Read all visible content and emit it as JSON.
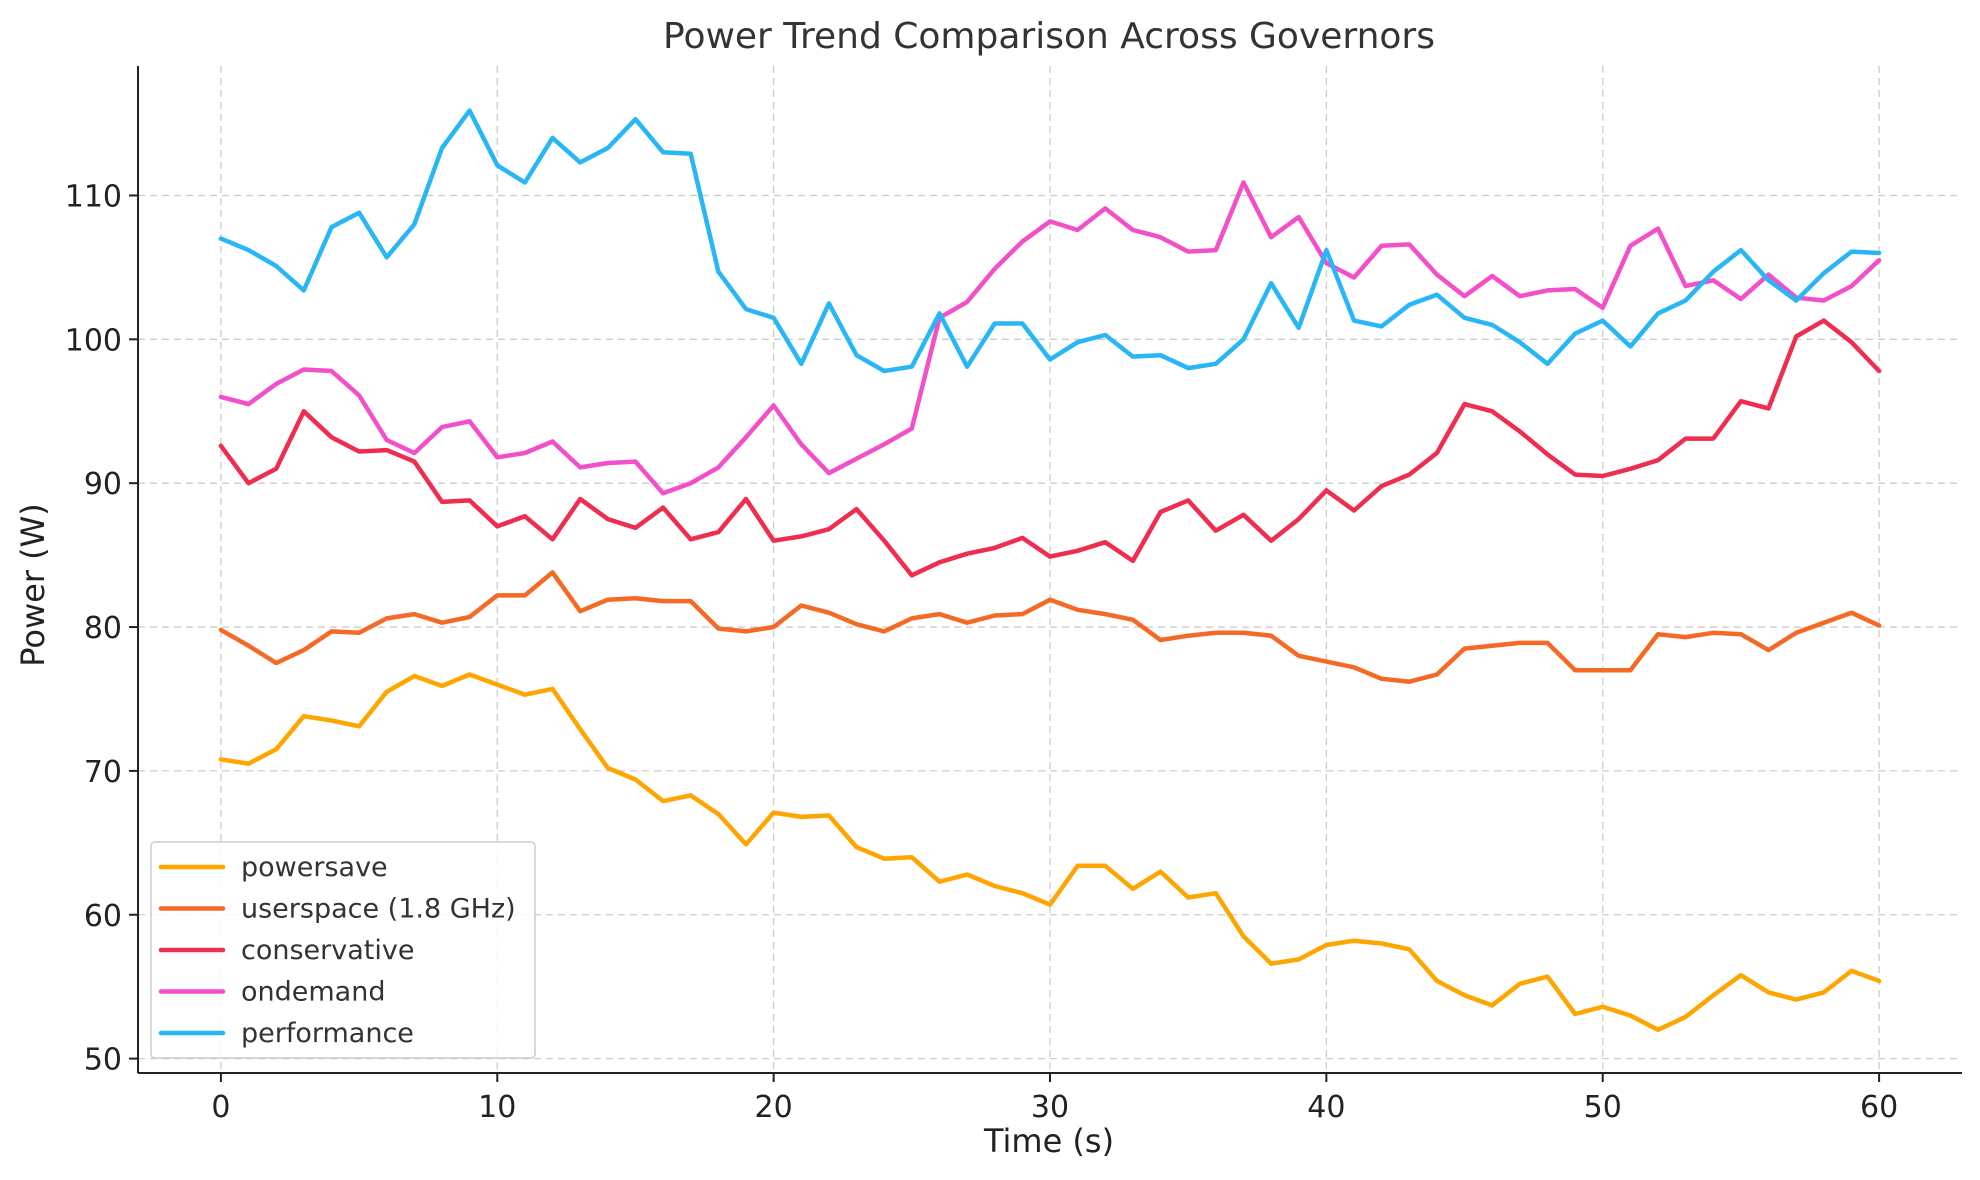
{
  "chart_data": {
    "type": "line",
    "title": "Power Trend Comparison Across Governors",
    "xlabel": "Time (s)",
    "ylabel": "Power (W)",
    "xlim": [
      -3,
      63
    ],
    "ylim": [
      49,
      119
    ],
    "xticks": [
      0,
      10,
      20,
      30,
      40,
      50,
      60
    ],
    "yticks": [
      50,
      60,
      70,
      80,
      90,
      100,
      110
    ],
    "grid": true,
    "legend_position": "bottom-left",
    "x": [
      0,
      1,
      2,
      3,
      4,
      5,
      6,
      7,
      8,
      9,
      10,
      11,
      12,
      13,
      14,
      15,
      16,
      17,
      18,
      19,
      20,
      21,
      22,
      23,
      24,
      25,
      26,
      27,
      28,
      29,
      30,
      31,
      32,
      33,
      34,
      35,
      36,
      37,
      38,
      39,
      40,
      41,
      42,
      43,
      44,
      45,
      46,
      47,
      48,
      49,
      50,
      51,
      52,
      53,
      54,
      55,
      56,
      57,
      58,
      59,
      60
    ],
    "series": [
      {
        "name": "powersave",
        "color": "#FFA500",
        "values": [
          70.8,
          70.5,
          71.5,
          73.8,
          73.5,
          73.1,
          75.5,
          76.6,
          75.9,
          76.7,
          76.0,
          75.3,
          75.7,
          72.9,
          70.2,
          69.4,
          67.9,
          68.3,
          67.0,
          64.9,
          67.1,
          66.8,
          66.9,
          64.7,
          63.9,
          64.0,
          62.3,
          62.8,
          62.0,
          61.5,
          60.7,
          63.4,
          63.4,
          61.8,
          63.0,
          61.2,
          61.5,
          58.5,
          56.6,
          56.9,
          57.9,
          58.2,
          58.0,
          57.6,
          55.4,
          54.4,
          53.7,
          55.2,
          55.7,
          53.1,
          53.6,
          53.0,
          52.0,
          52.9,
          54.4,
          55.8,
          54.6,
          54.1,
          54.6,
          56.1,
          55.4
        ]
      },
      {
        "name": "userspace (1.8 GHz)",
        "color": "#F46A25",
        "values": [
          79.8,
          78.7,
          77.5,
          78.4,
          79.7,
          79.6,
          80.6,
          80.9,
          80.3,
          80.7,
          82.2,
          82.2,
          83.8,
          81.1,
          81.9,
          82.0,
          81.8,
          81.8,
          79.9,
          79.7,
          80.0,
          81.5,
          81.0,
          80.2,
          79.7,
          80.6,
          80.9,
          80.3,
          80.8,
          80.9,
          81.9,
          81.2,
          80.9,
          80.5,
          79.1,
          79.4,
          79.6,
          79.6,
          79.4,
          78.0,
          77.6,
          77.2,
          76.4,
          76.2,
          76.7,
          78.5,
          78.7,
          78.9,
          78.9,
          77.0,
          77.0,
          77.0,
          79.5,
          79.3,
          79.6,
          79.5,
          78.4,
          79.6,
          80.3,
          81.0,
          80.1
        ]
      },
      {
        "name": "conservative",
        "color": "#EE2D4F",
        "values": [
          92.6,
          90.0,
          91.0,
          95.0,
          93.2,
          92.2,
          92.3,
          91.5,
          88.7,
          88.8,
          87.0,
          87.7,
          86.1,
          88.9,
          87.5,
          86.9,
          88.3,
          86.1,
          86.6,
          88.9,
          86.0,
          86.3,
          86.8,
          88.2,
          86.0,
          83.6,
          84.5,
          85.1,
          85.5,
          86.2,
          84.9,
          85.3,
          85.9,
          84.6,
          88.0,
          88.8,
          86.7,
          87.8,
          86.0,
          87.5,
          89.5,
          88.1,
          89.8,
          90.6,
          92.1,
          95.5,
          95.0,
          93.6,
          92.0,
          90.6,
          90.5,
          91.0,
          91.6,
          93.1,
          93.1,
          95.7,
          95.2,
          100.2,
          101.3,
          99.8,
          97.8
        ]
      },
      {
        "name": "ondemand",
        "color": "#F24FC8",
        "values": [
          96.0,
          95.5,
          96.9,
          97.9,
          97.8,
          96.1,
          93.0,
          92.1,
          93.9,
          94.3,
          91.8,
          92.1,
          92.9,
          91.1,
          91.4,
          91.5,
          89.3,
          90.0,
          91.1,
          93.2,
          95.4,
          92.7,
          90.7,
          91.7,
          92.7,
          93.8,
          101.5,
          102.6,
          104.9,
          106.8,
          108.2,
          107.6,
          109.1,
          107.6,
          107.1,
          106.1,
          106.2,
          110.9,
          107.1,
          108.5,
          105.3,
          104.3,
          106.5,
          106.6,
          104.5,
          103.0,
          104.4,
          103.0,
          103.4,
          103.5,
          102.2,
          106.5,
          107.7,
          103.7,
          104.1,
          102.8,
          104.5,
          102.9,
          102.7,
          103.7,
          105.5
        ]
      },
      {
        "name": "performance",
        "color": "#29B6F6",
        "values": [
          107.0,
          106.2,
          105.1,
          103.4,
          107.8,
          108.8,
          105.7,
          108.0,
          113.3,
          115.9,
          112.1,
          110.9,
          114.0,
          112.3,
          113.3,
          115.3,
          113.0,
          112.9,
          104.7,
          102.1,
          101.5,
          98.3,
          102.5,
          98.9,
          97.8,
          98.1,
          101.8,
          98.1,
          101.1,
          101.1,
          98.6,
          99.8,
          100.3,
          98.8,
          98.9,
          98.0,
          98.3,
          100.0,
          103.9,
          100.8,
          106.2,
          101.3,
          100.9,
          102.4,
          103.1,
          101.5,
          101.0,
          99.8,
          98.3,
          100.4,
          101.3,
          99.5,
          101.8,
          102.7,
          104.7,
          106.2,
          104.1,
          102.7,
          104.6,
          106.1,
          106.0
        ]
      }
    ]
  }
}
